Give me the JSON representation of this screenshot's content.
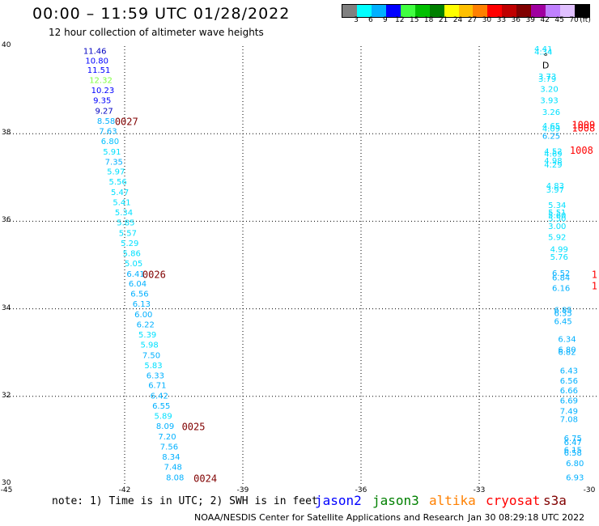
{
  "title": "00:00 – 11:59 UTC 01/28/2022",
  "subtitle": "12 hour collection of altimeter wave heights",
  "colorbar": {
    "unit": "(ft)",
    "ticks": [
      "3",
      "6",
      "9",
      "12",
      "15",
      "18",
      "21",
      "24",
      "27",
      "30",
      "33",
      "36",
      "39",
      "42",
      "45",
      "70"
    ],
    "colors": [
      "#808080",
      "#00ffff",
      "#00b0ff",
      "#0000ff",
      "#40ff40",
      "#00c000",
      "#008000",
      "#ffff00",
      "#ffc000",
      "#ff8000",
      "#ff0000",
      "#c00000",
      "#800000",
      "#a000a0",
      "#c080ff",
      "#e0c0ff",
      "#000000"
    ]
  },
  "map": {
    "lon_range": [
      -45,
      -30
    ],
    "lat_range": [
      30,
      40
    ],
    "lon_ticks": [
      "-45",
      "-42",
      "-39",
      "-36",
      "-33",
      "-30"
    ],
    "lat_ticks": [
      "40",
      "38",
      "36",
      "34",
      "32",
      "30"
    ],
    "grid": "dotted"
  },
  "observations": [
    {
      "lon": -43.05,
      "lat": 39.9,
      "text": "11.46",
      "color": "#0000c0"
    },
    {
      "lon": -43.0,
      "lat": 39.68,
      "text": "10.80",
      "color": "#0000ff"
    },
    {
      "lon": -42.95,
      "lat": 39.46,
      "text": "11.51",
      "color": "#0000ff"
    },
    {
      "lon": -42.9,
      "lat": 39.23,
      "text": "12.32",
      "color": "#80ff40"
    },
    {
      "lon": -42.85,
      "lat": 39.0,
      "text": "10.23",
      "color": "#0000ff"
    },
    {
      "lon": -42.8,
      "lat": 38.77,
      "text": "9.35",
      "color": "#0000ff"
    },
    {
      "lon": -42.75,
      "lat": 38.53,
      "text": "9.27",
      "color": "#0000c0"
    },
    {
      "lon": -42.7,
      "lat": 38.3,
      "text": "8.58",
      "color": "#00b0ff"
    },
    {
      "lon": -42.65,
      "lat": 38.07,
      "text": "7.63",
      "color": "#00b0ff"
    },
    {
      "lon": -42.6,
      "lat": 37.84,
      "text": "6.80",
      "color": "#00c0ff"
    },
    {
      "lon": -42.55,
      "lat": 37.6,
      "text": "5.91",
      "color": "#00e0ff"
    },
    {
      "lon": -42.5,
      "lat": 37.37,
      "text": "7.35",
      "color": "#00b0ff"
    },
    {
      "lon": -42.45,
      "lat": 37.14,
      "text": "5.97",
      "color": "#00e0ff"
    },
    {
      "lon": -42.4,
      "lat": 36.91,
      "text": "5.56",
      "color": "#00e0ff"
    },
    {
      "lon": -42.35,
      "lat": 36.67,
      "text": "5.47",
      "color": "#00e0ff"
    },
    {
      "lon": -42.3,
      "lat": 36.44,
      "text": "5.41",
      "color": "#00e0ff"
    },
    {
      "lon": -42.25,
      "lat": 36.21,
      "text": "5.34",
      "color": "#00e0ff"
    },
    {
      "lon": -42.2,
      "lat": 35.98,
      "text": "5.85",
      "color": "#00e0ff"
    },
    {
      "lon": -42.15,
      "lat": 35.74,
      "text": "5.57",
      "color": "#00e0ff"
    },
    {
      "lon": -42.1,
      "lat": 35.51,
      "text": "5.29",
      "color": "#00e0ff"
    },
    {
      "lon": -42.05,
      "lat": 35.28,
      "text": "5.86",
      "color": "#00e0ff"
    },
    {
      "lon": -42.0,
      "lat": 35.05,
      "text": "5.05",
      "color": "#00e0ff"
    },
    {
      "lon": -41.95,
      "lat": 34.81,
      "text": "6.41",
      "color": "#00b0ff"
    },
    {
      "lon": -41.9,
      "lat": 34.58,
      "text": "6.04",
      "color": "#00b0ff"
    },
    {
      "lon": -41.85,
      "lat": 34.35,
      "text": "6.56",
      "color": "#00b0ff"
    },
    {
      "lon": -41.8,
      "lat": 34.12,
      "text": "6.13",
      "color": "#00b0ff"
    },
    {
      "lon": -41.75,
      "lat": 33.88,
      "text": "6.00",
      "color": "#00b0ff"
    },
    {
      "lon": -41.7,
      "lat": 33.65,
      "text": "6.22",
      "color": "#00b0ff"
    },
    {
      "lon": -41.65,
      "lat": 33.42,
      "text": "5.39",
      "color": "#00e0ff"
    },
    {
      "lon": -41.6,
      "lat": 33.19,
      "text": "5.98",
      "color": "#00e0ff"
    },
    {
      "lon": -41.55,
      "lat": 32.95,
      "text": "7.50",
      "color": "#00b0ff"
    },
    {
      "lon": -41.5,
      "lat": 32.72,
      "text": "5.83",
      "color": "#00e0ff"
    },
    {
      "lon": -41.45,
      "lat": 32.49,
      "text": "6.33",
      "color": "#00b0ff"
    },
    {
      "lon": -41.4,
      "lat": 32.26,
      "text": "6.71",
      "color": "#00b0ff"
    },
    {
      "lon": -41.35,
      "lat": 32.02,
      "text": "6.42",
      "color": "#00b0ff"
    },
    {
      "lon": -41.3,
      "lat": 31.79,
      "text": "6.55",
      "color": "#00b0ff"
    },
    {
      "lon": -41.25,
      "lat": 31.56,
      "text": "5.89",
      "color": "#00e0ff"
    },
    {
      "lon": -41.2,
      "lat": 31.33,
      "text": "8.09",
      "color": "#00b0ff"
    },
    {
      "lon": -41.15,
      "lat": 31.09,
      "text": "7.20",
      "color": "#00b0ff"
    },
    {
      "lon": -41.1,
      "lat": 30.86,
      "text": "7.56",
      "color": "#00b0ff"
    },
    {
      "lon": -41.05,
      "lat": 30.63,
      "text": "8.34",
      "color": "#00b0ff"
    },
    {
      "lon": -41.0,
      "lat": 30.4,
      "text": "7.48",
      "color": "#00b0ff"
    },
    {
      "lon": -40.95,
      "lat": 30.16,
      "text": "8.08",
      "color": "#00b0ff"
    },
    {
      "lon": -31.6,
      "lat": 39.95,
      "text": "4.41",
      "color": "#00e0ff"
    },
    {
      "lon": -31.6,
      "lat": 39.88,
      "text": "4.34",
      "color": "#00e0ff"
    },
    {
      "lon": -31.5,
      "lat": 39.32,
      "text": "3.73",
      "color": "#00e0ff"
    },
    {
      "lon": -31.5,
      "lat": 39.26,
      "text": "3.79",
      "color": "#00e0ff"
    },
    {
      "lon": -31.45,
      "lat": 39.03,
      "text": "3.20",
      "color": "#00e0ff"
    },
    {
      "lon": -31.45,
      "lat": 38.77,
      "text": "3.93",
      "color": "#00e0ff"
    },
    {
      "lon": -31.4,
      "lat": 38.5,
      "text": "3.26",
      "color": "#00e0ff"
    },
    {
      "lon": -31.4,
      "lat": 38.19,
      "text": "4.65",
      "color": "#00e0ff"
    },
    {
      "lon": -31.4,
      "lat": 38.12,
      "text": "4.09",
      "color": "#00e0ff"
    },
    {
      "lon": -31.4,
      "lat": 37.96,
      "text": "6.25",
      "color": "#00b0ff"
    },
    {
      "lon": -31.35,
      "lat": 37.61,
      "text": "4.52",
      "color": "#00e0ff"
    },
    {
      "lon": -31.35,
      "lat": 37.55,
      "text": "4.69",
      "color": "#00e0ff"
    },
    {
      "lon": -31.35,
      "lat": 37.39,
      "text": "4.98",
      "color": "#00e0ff"
    },
    {
      "lon": -31.35,
      "lat": 37.3,
      "text": "4.29",
      "color": "#00e0ff"
    },
    {
      "lon": -31.3,
      "lat": 36.82,
      "text": "4.83",
      "color": "#00e0ff"
    },
    {
      "lon": -31.3,
      "lat": 36.73,
      "text": "3.97",
      "color": "#00e0ff"
    },
    {
      "lon": -31.25,
      "lat": 36.38,
      "text": "5.34",
      "color": "#00e0ff"
    },
    {
      "lon": -31.25,
      "lat": 36.21,
      "text": "5.51",
      "color": "#00e0ff"
    },
    {
      "lon": -31.25,
      "lat": 36.15,
      "text": "5.60",
      "color": "#00e0ff"
    },
    {
      "lon": -31.25,
      "lat": 36.07,
      "text": "5.50",
      "color": "#00e0ff"
    },
    {
      "lon": -31.25,
      "lat": 35.9,
      "text": "3.00",
      "color": "#00e0ff"
    },
    {
      "lon": -31.25,
      "lat": 35.65,
      "text": "5.92",
      "color": "#00e0ff"
    },
    {
      "lon": -31.2,
      "lat": 35.37,
      "text": "4.99",
      "color": "#00e0ff"
    },
    {
      "lon": -31.2,
      "lat": 35.19,
      "text": "5.76",
      "color": "#00e0ff"
    },
    {
      "lon": -31.15,
      "lat": 34.82,
      "text": "6.52",
      "color": "#00b0ff"
    },
    {
      "lon": -31.15,
      "lat": 34.72,
      "text": "6.84",
      "color": "#00b0ff"
    },
    {
      "lon": -31.15,
      "lat": 34.48,
      "text": "6.16",
      "color": "#00b0ff"
    },
    {
      "lon": -31.1,
      "lat": 33.98,
      "text": "6.85",
      "color": "#00b0ff"
    },
    {
      "lon": -31.1,
      "lat": 33.91,
      "text": "6.35",
      "color": "#00b0ff"
    },
    {
      "lon": -31.1,
      "lat": 33.72,
      "text": "6.45",
      "color": "#00b0ff"
    },
    {
      "lon": -31.0,
      "lat": 33.32,
      "text": "6.34",
      "color": "#00b0ff"
    },
    {
      "lon": -31.0,
      "lat": 33.08,
      "text": "6.80",
      "color": "#00b0ff"
    },
    {
      "lon": -31.0,
      "lat": 33.02,
      "text": "6.82",
      "color": "#00b0ff"
    },
    {
      "lon": -30.95,
      "lat": 32.6,
      "text": "6.43",
      "color": "#00b0ff"
    },
    {
      "lon": -30.95,
      "lat": 32.37,
      "text": "6.56",
      "color": "#00b0ff"
    },
    {
      "lon": -30.95,
      "lat": 32.14,
      "text": "6.66",
      "color": "#00b0ff"
    },
    {
      "lon": -30.95,
      "lat": 31.91,
      "text": "6.69",
      "color": "#00b0ff"
    },
    {
      "lon": -30.95,
      "lat": 31.67,
      "text": "7.49",
      "color": "#00b0ff"
    },
    {
      "lon": -30.95,
      "lat": 31.49,
      "text": "7.08",
      "color": "#00b0ff"
    },
    {
      "lon": -30.85,
      "lat": 31.05,
      "text": "6.75",
      "color": "#00b0ff"
    },
    {
      "lon": -30.85,
      "lat": 30.96,
      "text": "6.47",
      "color": "#00b0ff"
    },
    {
      "lon": -30.85,
      "lat": 30.79,
      "text": "6.15",
      "color": "#00b0ff"
    },
    {
      "lon": -30.85,
      "lat": 30.72,
      "text": "6.58",
      "color": "#00b0ff"
    },
    {
      "lon": -30.8,
      "lat": 30.48,
      "text": "6.80",
      "color": "#00b0ff"
    },
    {
      "lon": -30.8,
      "lat": 30.16,
      "text": "6.93",
      "color": "#00b0ff"
    }
  ],
  "station_ids": [
    {
      "lon": -42.25,
      "lat": 38.27,
      "text": "0027",
      "color": "#800000"
    },
    {
      "lon": -41.55,
      "lat": 34.78,
      "text": "0026",
      "color": "#800000"
    },
    {
      "lon": -40.55,
      "lat": 31.3,
      "text": "0025",
      "color": "#800000"
    },
    {
      "lon": -40.25,
      "lat": 30.12,
      "text": "0024",
      "color": "#800000"
    },
    {
      "lon": -30.65,
      "lat": 38.2,
      "text": "1009",
      "color": "#ff0000"
    },
    {
      "lon": -30.65,
      "lat": 38.12,
      "text": "1008",
      "color": "#ff0000"
    },
    {
      "lon": -30.7,
      "lat": 37.62,
      "text": "1008",
      "color": "#ff0000"
    },
    {
      "lon": -30.15,
      "lat": 34.78,
      "text": "10",
      "color": "#ff0000"
    },
    {
      "lon": -30.15,
      "lat": 34.52,
      "text": "10",
      "color": "#ff0000"
    }
  ],
  "symbols": [
    {
      "lon": -31.37,
      "lat": 39.76,
      "text": "°",
      "color": "#000000"
    },
    {
      "lon": -31.4,
      "lat": 39.57,
      "text": "D",
      "color": "#000000"
    }
  ],
  "note": "note:  1) Time is in UTC;  2) SWH is in feet",
  "satellites": [
    {
      "name": "jason2",
      "color": "#0000ff"
    },
    {
      "name": "jason3",
      "color": "#008000"
    },
    {
      "name": "altika",
      "color": "#ff8000"
    },
    {
      "name": "cryosat",
      "color": "#ff0000"
    },
    {
      "name": "s3a",
      "color": "#800000"
    }
  ],
  "credit": "NOAA/NESDIS Center for Satellite Applications and Research",
  "timestamp": "Jan 30 08:29:18 UTC 2022"
}
